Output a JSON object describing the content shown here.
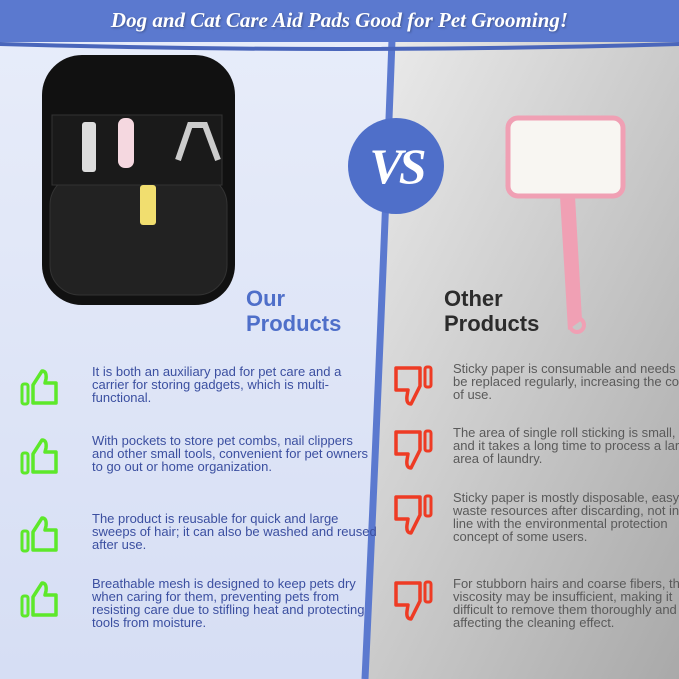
{
  "title": "Dog and Cat Care Aid Pads Good for Pet Grooming!",
  "vs_label": "VS",
  "colors": {
    "header_blue": "#5b79cf",
    "left_bg": "#dfe5f6",
    "right_bg": "#c4c4c4",
    "accent_blue": "#4f6fc9",
    "thumb_up": "#5de82a",
    "thumb_down": "#ee3b24",
    "roller_pink": "#f0a0b4"
  },
  "our_products": {
    "heading_line1": "Our",
    "heading_line2": "Products",
    "icon": "thumbs-up-icon",
    "items": [
      "It is both an auxiliary pad for pet care and a carrier for storing gadgets, which is multi-functional.",
      "With pockets to store pet combs, nail clippers and other small tools, convenient for pet owners to go out or home organization.",
      "The product is reusable for quick and large sweeps of hair; it can also be washed and reused after use.",
      "Breathable mesh is designed to keep pets dry when caring for them, preventing pets from resisting care due to stifling heat and protecting tools from moisture."
    ]
  },
  "other_products": {
    "heading_line1": "Other",
    "heading_line2": "Products",
    "icon": "thumbs-down-icon",
    "items": [
      "Sticky paper is consumable and needs to be replaced regularly, increasing the cost of use.",
      "The area of single roll sticking is small, and it takes a long time to process a large area of laundry.",
      "Sticky paper is mostly disposable, easy to waste resources after discarding, not in line with the environmental protection concept of some users.",
      "For stubborn hairs and coarse fibers, the viscosity may be insufficient, making it difficult to remove them thoroughly and affecting the cleaning effect."
    ]
  }
}
